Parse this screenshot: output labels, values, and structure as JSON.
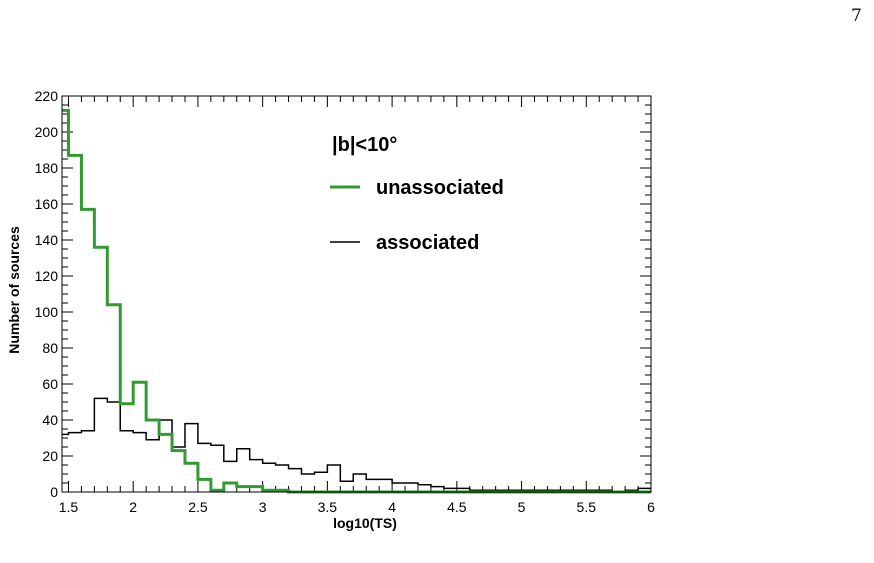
{
  "page": {
    "number": "7"
  },
  "chart_data": {
    "type": "step",
    "xlabel": "log10(TS)",
    "ylabel": "Number of sources",
    "xlim": [
      1.45,
      6.0
    ],
    "ylim": [
      0,
      220
    ],
    "x_ticks": [
      1.5,
      2,
      2.5,
      3,
      3.5,
      4,
      4.5,
      5,
      5.5,
      6
    ],
    "x_tick_labels": [
      "1.5",
      "2",
      "2.5",
      "3",
      "3.5",
      "4",
      "4.5",
      "5",
      "5.5",
      "6"
    ],
    "y_ticks": [
      0,
      20,
      40,
      60,
      80,
      100,
      120,
      140,
      160,
      180,
      200,
      220
    ],
    "y_tick_labels": [
      "0",
      "20",
      "40",
      "60",
      "80",
      "100",
      "120",
      "140",
      "160",
      "180",
      "200",
      "220"
    ],
    "bin_edges": [
      1.45,
      1.5,
      1.6,
      1.7,
      1.8,
      1.9,
      2.0,
      2.1,
      2.2,
      2.3,
      2.4,
      2.5,
      2.6,
      2.7,
      2.8,
      2.9,
      3.0,
      3.1,
      3.2,
      3.3,
      3.4,
      3.5,
      3.6,
      3.7,
      3.8,
      3.9,
      4.0,
      4.1,
      4.2,
      4.3,
      4.4,
      4.5,
      4.6,
      4.7,
      4.8,
      4.9,
      5.0,
      5.1,
      5.2,
      5.3,
      5.4,
      5.5,
      5.6,
      5.7,
      5.8,
      5.9,
      6.0
    ],
    "legend_title": "|b|<10°",
    "legend_position": "top-right",
    "series": [
      {
        "name": "unassociated",
        "color": "#339933",
        "values": [
          212,
          187,
          157,
          136,
          104,
          49,
          61,
          40,
          32,
          23,
          16,
          7,
          1,
          5,
          3,
          3,
          1,
          1,
          0,
          0,
          0,
          0,
          0,
          0,
          0,
          0,
          0,
          0,
          0,
          0,
          0,
          0,
          0,
          0,
          0,
          0,
          0,
          0,
          0,
          0,
          0,
          0,
          0,
          0,
          0,
          0
        ]
      },
      {
        "name": "associated",
        "color": "#000000",
        "values": [
          32,
          33,
          34,
          52,
          50,
          34,
          33,
          29,
          40,
          25,
          38,
          27,
          26,
          17,
          24,
          18,
          16,
          15,
          13,
          10,
          11,
          15,
          6,
          10,
          7,
          7,
          5,
          5,
          4,
          3,
          2,
          2,
          1,
          1,
          1,
          1,
          1,
          1,
          1,
          1,
          1,
          1,
          1,
          0,
          1,
          2
        ]
      }
    ]
  }
}
